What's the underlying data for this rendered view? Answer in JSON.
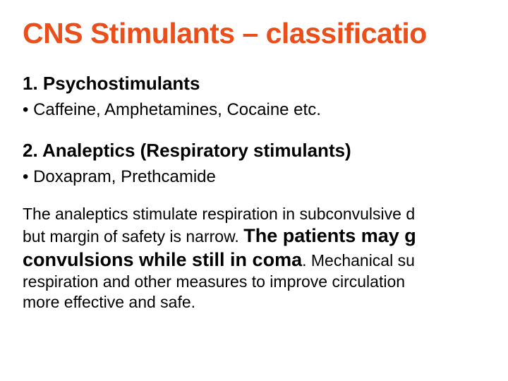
{
  "title": {
    "text": "CNS Stimulants – classificatio",
    "color": "#e94e1b"
  },
  "sections": [
    {
      "heading": "1. Psychostimulants",
      "bullet": "•  Caffeine, Amphetamines, Cocaine etc."
    },
    {
      "heading": "2. Analeptics (Respiratory stimulants)",
      "bullet": "•  Doxapram, Prethcamide"
    }
  ],
  "paragraph": {
    "line1": "The analeptics stimulate respiration in subconvulsive d",
    "line2a": "but margin of safety is narrow. ",
    "line2b_emph": "The patients may g",
    "line3a_emph": "convulsions while still in coma",
    "line3b": ". Mechanical su",
    "line4": "respiration and other measures to improve circulation ",
    "line5": "more effective and safe."
  },
  "colors": {
    "title": "#e94e1b",
    "body": "#000000",
    "background": "#ffffff"
  }
}
